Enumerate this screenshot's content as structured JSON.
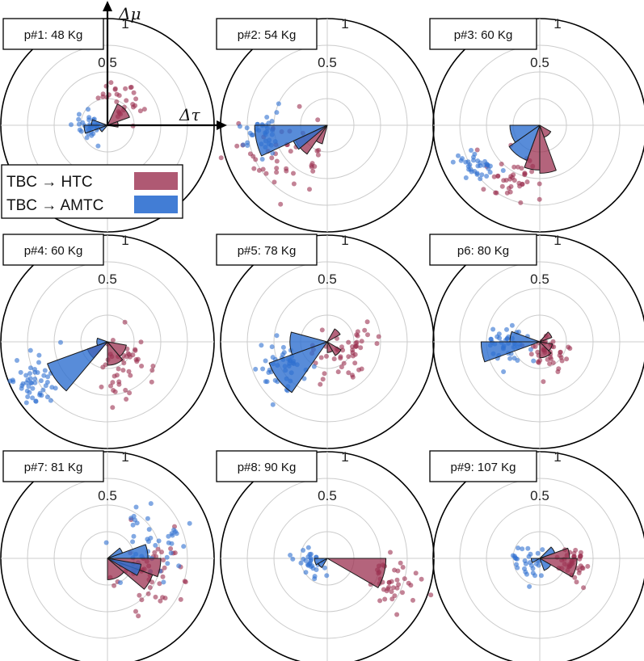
{
  "chart_data": {
    "type": "polar-scatter-rose",
    "axis_labels": {
      "x": "Δτ",
      "y": "Δμ"
    },
    "ring_values": [
      0.25,
      0.5,
      0.75,
      1
    ],
    "ring_tick_labels": [
      "0.5",
      "1"
    ],
    "legend": [
      {
        "label": "TBC → HTC",
        "color": "#9B3050"
      },
      {
        "label": "TBC → AMTC",
        "color": "#2E6FD0"
      }
    ],
    "panels": [
      {
        "title": "p#1: 48 Kg",
        "htc": {
          "wedges": [
            {
              "a1": 20,
              "a2": 65,
              "r": 0.22
            },
            {
              "a1": -10,
              "a2": 20,
              "r": 0.1
            }
          ],
          "cluster": {
            "angle": 60,
            "dist": 0.28,
            "spread": 0.1,
            "n": 30
          }
        },
        "amtc": {
          "wedges": [
            {
              "a1": 180,
              "a2": 200,
              "r": 0.22
            },
            {
              "a1": 160,
              "a2": 180,
              "r": 0.15
            },
            {
              "a1": 200,
              "a2": 230,
              "r": 0.08
            }
          ],
          "cluster": {
            "angle": 185,
            "dist": 0.16,
            "spread": 0.07,
            "n": 30
          }
        }
      },
      {
        "title": "p#2: 54 Kg",
        "htc": {
          "wedges": [
            {
              "a1": 205,
              "a2": 235,
              "r": 0.33
            },
            {
              "a1": 235,
              "a2": 255,
              "r": 0.18
            }
          ],
          "cluster": {
            "angle": 212,
            "dist": 0.55,
            "spread": 0.18,
            "n": 45
          }
        },
        "amtc": {
          "wedges": [
            {
              "a1": 180,
              "a2": 205,
              "r": 0.68
            },
            {
              "a1": 205,
              "a2": 220,
              "r": 0.35
            }
          ],
          "cluster": {
            "angle": 190,
            "dist": 0.62,
            "spread": 0.1,
            "n": 35
          }
        }
      },
      {
        "title": "p#3: 60 Kg",
        "htc": {
          "wedges": [
            {
              "a1": 270,
              "a2": 290,
              "r": 0.45
            },
            {
              "a1": 250,
              "a2": 270,
              "r": 0.42
            },
            {
              "a1": 290,
              "a2": 330,
              "r": 0.12
            }
          ],
          "cluster": {
            "angle": 240,
            "dist": 0.55,
            "spread": 0.12,
            "n": 40
          }
        },
        "amtc": {
          "wedges": [
            {
              "a1": 180,
              "a2": 215,
              "r": 0.28
            },
            {
              "a1": 215,
              "a2": 250,
              "r": 0.35
            }
          ],
          "cluster": {
            "angle": 212,
            "dist": 0.72,
            "spread": 0.08,
            "n": 35
          }
        }
      },
      {
        "title": "p#4: 60 Kg",
        "htc": {
          "wedges": [
            {
              "a1": 270,
              "a2": 310,
              "r": 0.22
            },
            {
              "a1": 310,
              "a2": 350,
              "r": 0.18
            },
            {
              "a1": 200,
              "a2": 230,
              "r": 0.2
            }
          ],
          "cluster": {
            "angle": 300,
            "dist": 0.28,
            "spread": 0.15,
            "n": 45
          }
        },
        "amtc": {
          "wedges": [
            {
              "a1": 200,
              "a2": 230,
              "r": 0.6
            },
            {
              "a1": 160,
              "a2": 200,
              "r": 0.1
            }
          ],
          "cluster": {
            "angle": 208,
            "dist": 0.8,
            "spread": 0.13,
            "n": 50
          }
        }
      },
      {
        "title": "p#5: 78 Kg",
        "htc": {
          "wedges": [
            {
              "a1": 300,
              "a2": 330,
              "r": 0.15
            },
            {
              "a1": 30,
              "a2": 60,
              "r": 0.14
            },
            {
              "a1": 270,
              "a2": 300,
              "r": 0.1
            }
          ],
          "cluster": {
            "angle": 330,
            "dist": 0.22,
            "spread": 0.16,
            "n": 50
          }
        },
        "amtc": {
          "wedges": [
            {
              "a1": 200,
              "a2": 235,
              "r": 0.58
            },
            {
              "a1": 165,
              "a2": 200,
              "r": 0.35
            }
          ],
          "cluster": {
            "angle": 210,
            "dist": 0.48,
            "spread": 0.12,
            "n": 45
          }
        }
      },
      {
        "title": "p6: 80 Kg",
        "htc": {
          "wedges": [
            {
              "a1": 270,
              "a2": 315,
              "r": 0.15
            },
            {
              "a1": 315,
              "a2": 350,
              "r": 0.12
            },
            {
              "a1": 20,
              "a2": 50,
              "r": 0.12
            }
          ],
          "cluster": {
            "angle": 300,
            "dist": 0.16,
            "spread": 0.1,
            "n": 40
          }
        },
        "amtc": {
          "wedges": [
            {
              "a1": 180,
              "a2": 200,
              "r": 0.55
            },
            {
              "a1": 160,
              "a2": 180,
              "r": 0.28
            }
          ],
          "cluster": {
            "angle": 190,
            "dist": 0.32,
            "spread": 0.1,
            "n": 40
          }
        }
      },
      {
        "title": "p#7: 81 Kg",
        "htc": {
          "wedges": [
            {
              "a1": 340,
              "a2": 360,
              "r": 0.5
            },
            {
              "a1": 320,
              "a2": 340,
              "r": 0.45
            },
            {
              "a1": 270,
              "a2": 320,
              "r": 0.2
            }
          ],
          "cluster": {
            "angle": 345,
            "dist": 0.45,
            "spread": 0.18,
            "n": 45
          }
        },
        "amtc": {
          "wedges": [
            {
              "a1": 0,
              "a2": 20,
              "r": 0.38
            },
            {
              "a1": 330,
              "a2": 350,
              "r": 0.32
            },
            {
              "a1": 20,
              "a2": 40,
              "r": 0.15
            }
          ],
          "cluster": {
            "angle": 15,
            "dist": 0.4,
            "spread": 0.18,
            "n": 45
          }
        }
      },
      {
        "title": "p#8: 90 Kg",
        "htc": {
          "wedges": [
            {
              "a1": 330,
              "a2": 360,
              "r": 0.55
            }
          ],
          "cluster": {
            "angle": 338,
            "dist": 0.62,
            "spread": 0.11,
            "n": 40
          }
        },
        "amtc": {
          "wedges": [
            {
              "a1": 180,
              "a2": 210,
              "r": 0.12
            },
            {
              "a1": 210,
              "a2": 240,
              "r": 0.1
            }
          ],
          "cluster": {
            "angle": 200,
            "dist": 0.14,
            "spread": 0.07,
            "n": 30
          }
        }
      },
      {
        "title": "p#9: 107 Kg",
        "htc": {
          "wedges": [
            {
              "a1": 330,
              "a2": 360,
              "r": 0.35
            },
            {
              "a1": 0,
              "a2": 20,
              "r": 0.28
            }
          ],
          "cluster": {
            "angle": 350,
            "dist": 0.32,
            "spread": 0.08,
            "n": 40
          }
        },
        "amtc": {
          "wedges": [
            {
              "a1": 20,
              "a2": 45,
              "r": 0.15
            },
            {
              "a1": 290,
              "a2": 330,
              "r": 0.12
            },
            {
              "a1": 180,
              "a2": 210,
              "r": 0.08
            }
          ],
          "cluster": {
            "angle": 200,
            "dist": 0.14,
            "spread": 0.08,
            "n": 30
          }
        }
      }
    ]
  }
}
